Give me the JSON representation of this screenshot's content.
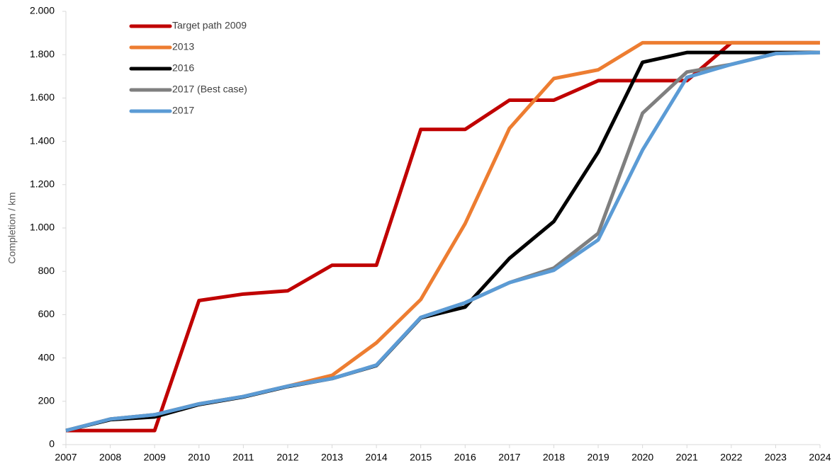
{
  "chart_data": {
    "type": "line",
    "y_label": "Completion / km",
    "x": [
      2007,
      2008,
      2009,
      2010,
      2011,
      2012,
      2013,
      2014,
      2015,
      2016,
      2017,
      2018,
      2019,
      2020,
      2021,
      2022,
      2023,
      2024
    ],
    "xlim": [
      2007,
      2024
    ],
    "xticks": [
      2007,
      2008,
      2009,
      2010,
      2011,
      2012,
      2013,
      2014,
      2015,
      2016,
      2017,
      2018,
      2019,
      2020,
      2021,
      2022,
      2023,
      2024
    ],
    "ylim": [
      0,
      2000
    ],
    "yticks": [
      0,
      200,
      400,
      600,
      800,
      {
        "value": 1000,
        "label": "1.000"
      },
      {
        "value": 1200,
        "label": "1.200"
      },
      {
        "value": 1400,
        "label": "1.400"
      },
      {
        "value": 1600,
        "label": "1.600"
      },
      {
        "value": 1800,
        "label": "1.800"
      },
      {
        "value": 2000,
        "label": "2.000"
      }
    ],
    "grid": false,
    "legend": "upper left",
    "series": [
      {
        "name": "Target path 2009",
        "color": "#c00000",
        "values": [
          65,
          65,
          65,
          665,
          695,
          710,
          828,
          828,
          1455,
          1455,
          1590,
          1590,
          1680,
          1680,
          1680,
          1855,
          1855,
          1855
        ]
      },
      {
        "name": "2013",
        "color": "#ed7d31",
        "values": [
          65,
          118,
          138,
          188,
          222,
          270,
          320,
          470,
          670,
          1020,
          1460,
          1690,
          1730,
          1855,
          1855,
          1855,
          1855,
          1855
        ]
      },
      {
        "name": "2016",
        "color": "#000000",
        "values": [
          65,
          115,
          128,
          185,
          220,
          268,
          305,
          365,
          585,
          635,
          860,
          1030,
          1350,
          1765,
          1810,
          1810,
          1810,
          1810
        ]
      },
      {
        "name": "2017 (Best case)",
        "color": "#7f7f7f",
        "values": [
          65,
          118,
          138,
          188,
          222,
          270,
          305,
          367,
          587,
          655,
          748,
          815,
          975,
          1530,
          1720,
          1755,
          1805,
          1810
        ]
      },
      {
        "name": "2017",
        "color": "#5b9bd5",
        "values": [
          65,
          118,
          138,
          188,
          222,
          270,
          305,
          367,
          587,
          655,
          748,
          805,
          945,
          1360,
          1695,
          1755,
          1805,
          1810
        ]
      }
    ]
  }
}
